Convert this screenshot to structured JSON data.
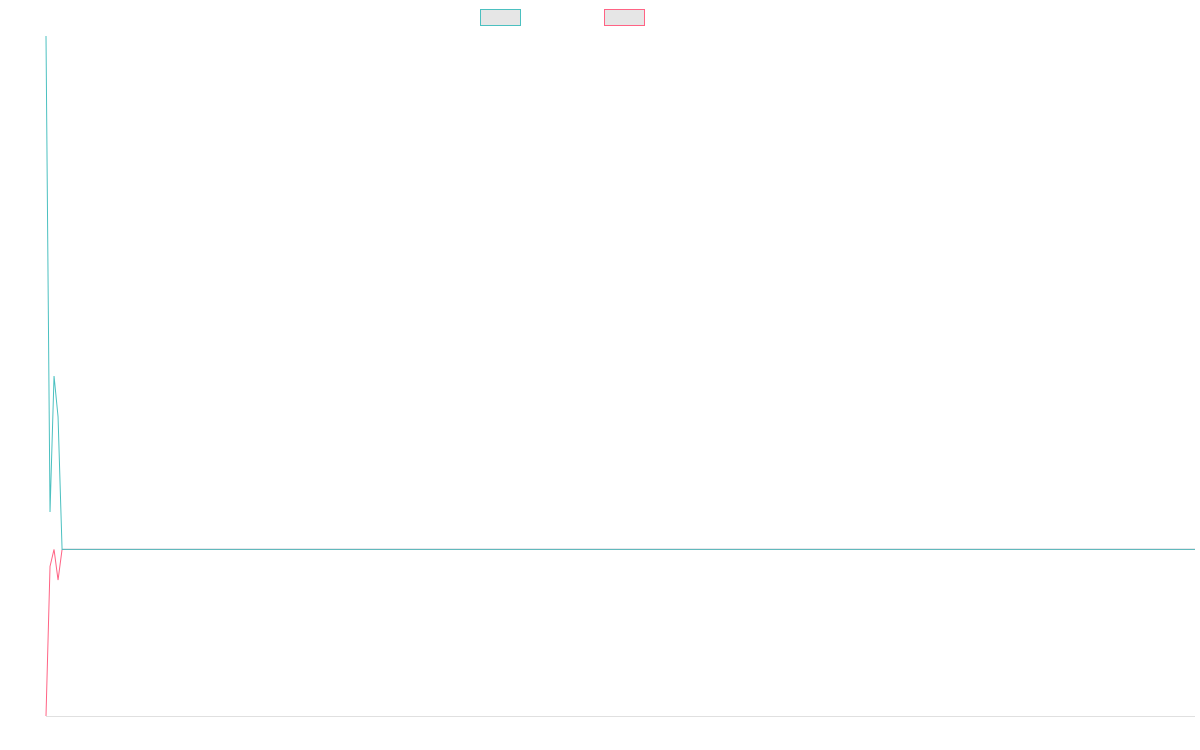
{
  "chart_data": {
    "type": "line",
    "title": "",
    "xlabel": "",
    "ylabel": "",
    "grid": false,
    "legend": "top-center",
    "ylim": [
      0,
      100
    ],
    "x": [
      0,
      1,
      2,
      3,
      4,
      5,
      10,
      20,
      40,
      80,
      160,
      286
    ],
    "series": [
      {
        "color": "#4bc0c0",
        "legend_fill": "#e6e6e6",
        "values": [
          100,
          30,
          50,
          44,
          24.5,
          24.5,
          24.5,
          24.5,
          24.5,
          24.5,
          24.5,
          24.5
        ]
      },
      {
        "color": "#ff6384",
        "legend_fill": "#e6e6e6",
        "values": [
          0,
          22,
          24.5,
          20,
          24.5,
          24.5,
          24.5,
          24.5,
          24.5,
          24.5,
          24.5,
          24.5
        ]
      }
    ]
  },
  "colors": {
    "axis": "#e0e0e0",
    "background": "#ffffff"
  }
}
